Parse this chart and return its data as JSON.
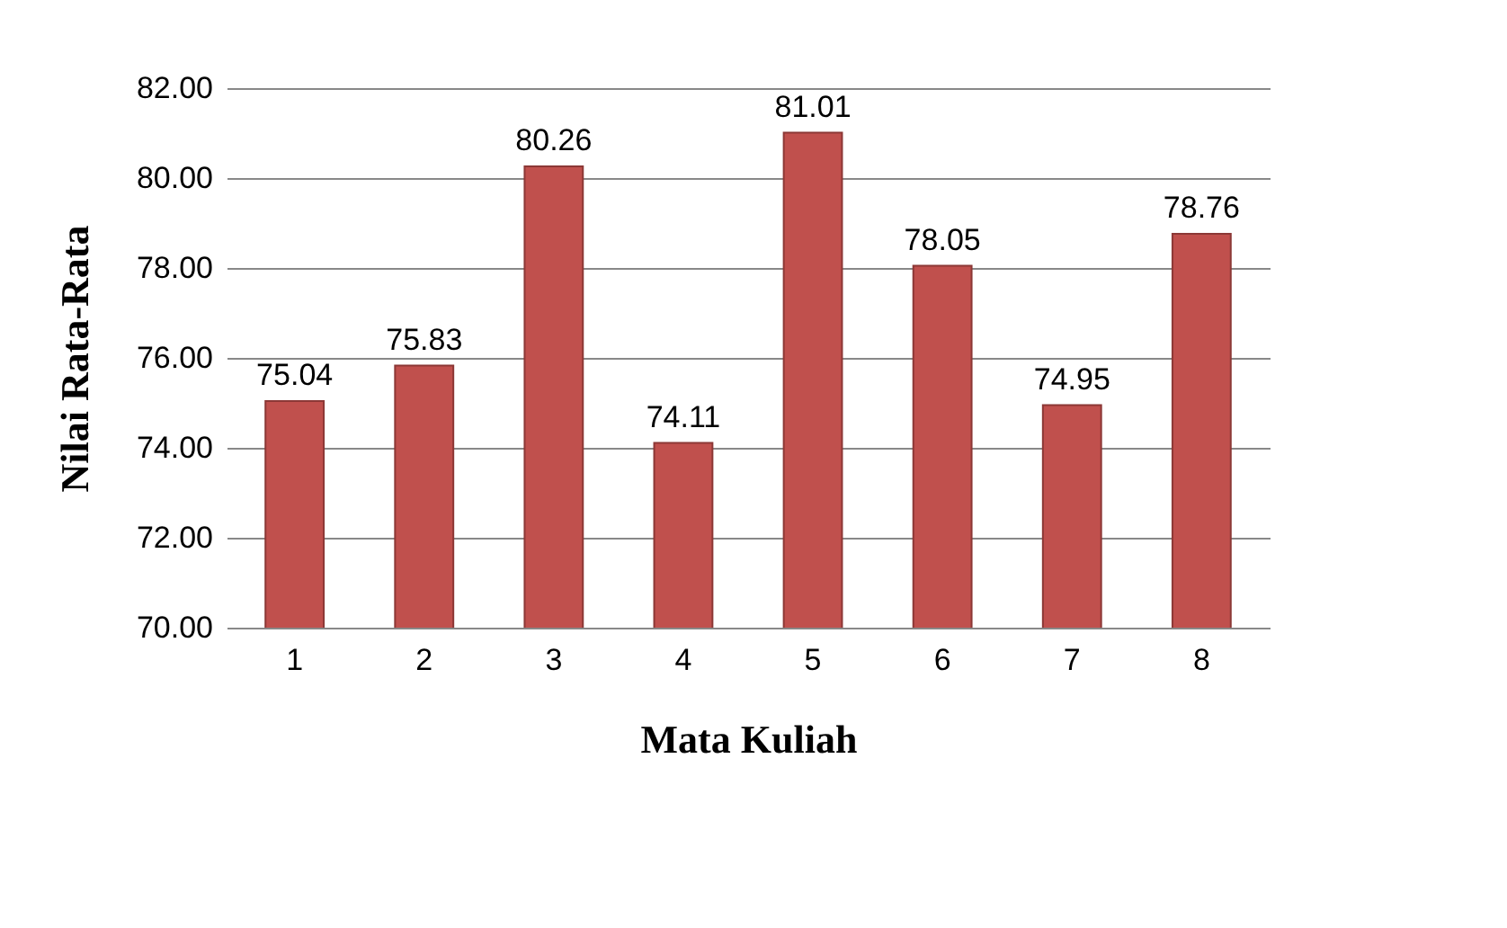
{
  "chart_data": {
    "type": "bar",
    "xlabel": "Mata Kuliah",
    "ylabel": "Nilai Rata-Rata",
    "categories": [
      "1",
      "2",
      "3",
      "4",
      "5",
      "6",
      "7",
      "8"
    ],
    "values": [
      75.04,
      75.83,
      80.26,
      74.11,
      81.01,
      78.05,
      74.95,
      78.76
    ],
    "color": "#c0504d",
    "ylim": [
      70,
      82
    ],
    "yticks": [
      {
        "value": 70,
        "label": "70.00"
      },
      {
        "value": 72,
        "label": "72.00"
      },
      {
        "value": 74,
        "label": "74.00"
      },
      {
        "value": 76,
        "label": "76.00"
      },
      {
        "value": 78,
        "label": "78.00"
      },
      {
        "value": 80,
        "label": "80.00"
      },
      {
        "value": 82,
        "label": "82.00"
      }
    ],
    "grid": "y",
    "data_labels": true
  }
}
